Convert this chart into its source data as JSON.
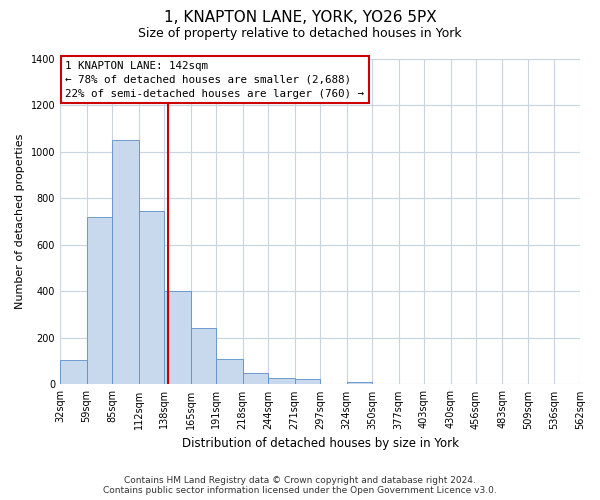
{
  "title": "1, KNAPTON LANE, YORK, YO26 5PX",
  "subtitle": "Size of property relative to detached houses in York",
  "xlabel": "Distribution of detached houses by size in York",
  "ylabel": "Number of detached properties",
  "bin_edges": [
    32,
    59,
    85,
    112,
    138,
    165,
    191,
    218,
    244,
    271,
    297,
    324,
    350,
    377,
    403,
    430,
    456,
    483,
    509,
    536,
    562
  ],
  "bar_heights": [
    107,
    720,
    1050,
    748,
    400,
    243,
    110,
    48,
    27,
    22,
    0,
    10,
    0,
    0,
    0,
    0,
    0,
    0,
    0,
    0
  ],
  "bar_color": "#c8d9ed",
  "bar_edge_color": "#5b8fc9",
  "vline_x": 142,
  "vline_color": "#cc0000",
  "annotation_title": "1 KNAPTON LANE: 142sqm",
  "annotation_line1": "← 78% of detached houses are smaller (2,688)",
  "annotation_line2": "22% of semi-detached houses are larger (760) →",
  "annotation_box_edge_color": "#cc0000",
  "annotation_box_face_color": "#ffffff",
  "ylim": [
    0,
    1400
  ],
  "yticks": [
    0,
    200,
    400,
    600,
    800,
    1000,
    1200,
    1400
  ],
  "footer_line1": "Contains HM Land Registry data © Crown copyright and database right 2024.",
  "footer_line2": "Contains public sector information licensed under the Open Government Licence v3.0.",
  "background_color": "#ffffff",
  "grid_color": "#c8d4e0",
  "title_fontsize": 11,
  "subtitle_fontsize": 9,
  "ylabel_fontsize": 8,
  "xlabel_fontsize": 8.5,
  "tick_label_fontsize": 7,
  "footer_fontsize": 6.5
}
